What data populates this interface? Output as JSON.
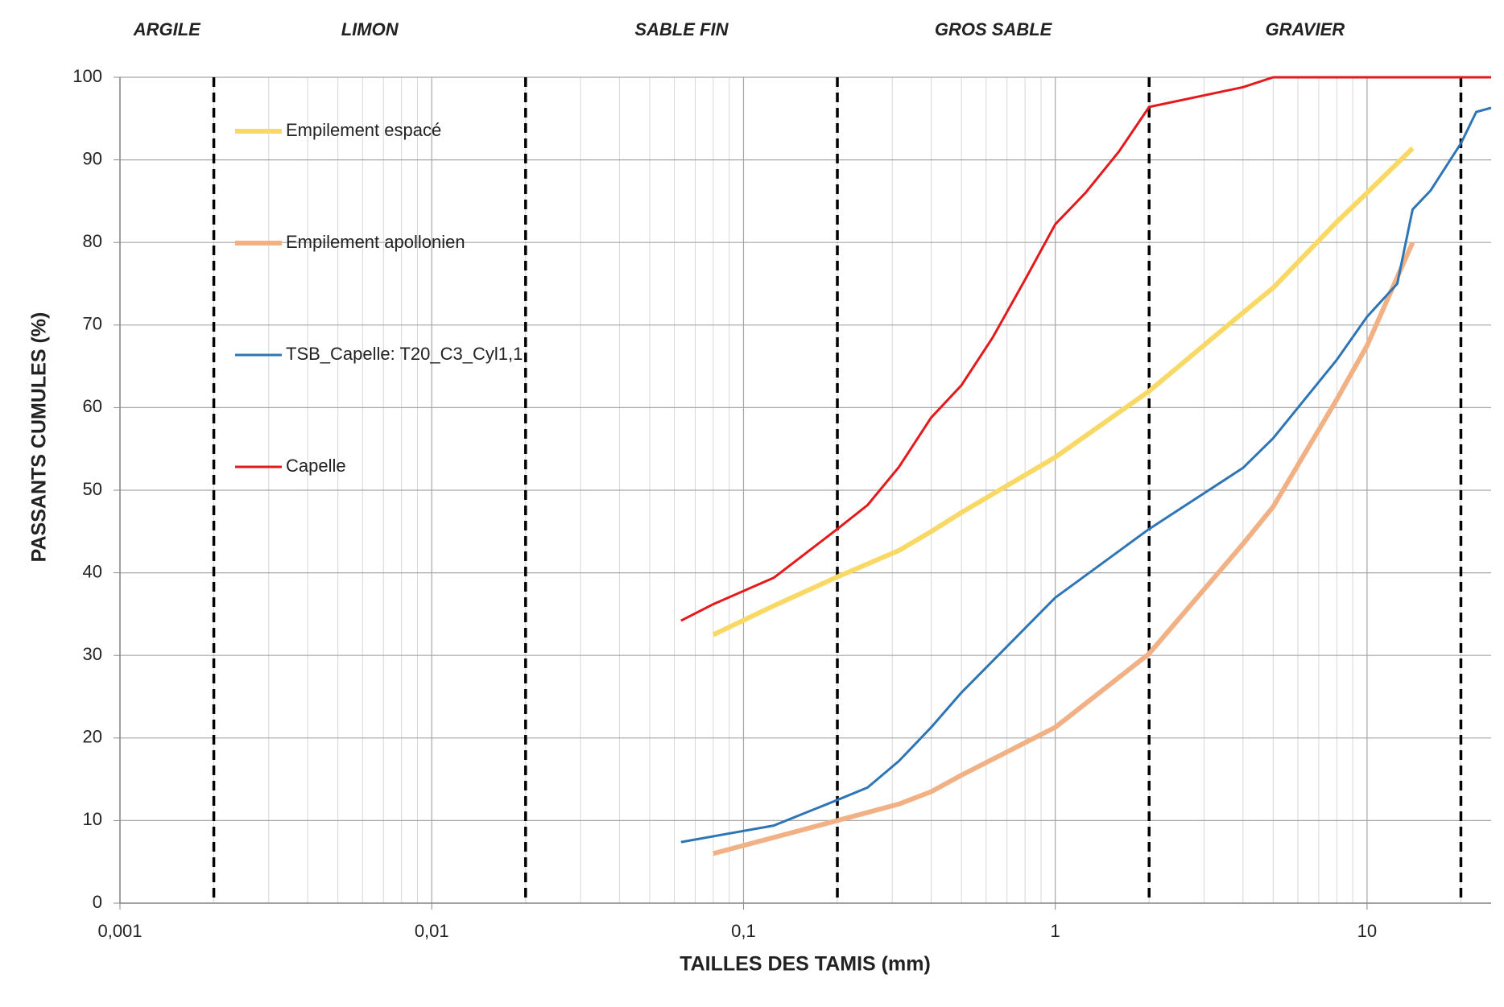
{
  "chart_data": {
    "type": "line",
    "x_axis_label": "TAILLES DES TAMIS (mm)",
    "y_axis_label": "PASSANTS CUMULES (%)",
    "log_x": true,
    "grid": true,
    "minor_grid": true,
    "legend": "upper left",
    "xlim": [
      0.001,
      25
    ],
    "ylim": [
      0,
      100
    ],
    "xticks": [
      {
        "value": 0.001,
        "label": "0,001"
      },
      {
        "value": 0.01,
        "label": "0,01"
      },
      {
        "value": 0.1,
        "label": "0,1"
      },
      1,
      10
    ],
    "yticks": [
      0,
      10,
      20,
      30,
      40,
      50,
      60,
      70,
      80,
      90,
      100
    ],
    "zones": [
      "ARGILE",
      "LIMON",
      "SABLE FIN",
      "GROS SABLE",
      "GRAVIER"
    ],
    "zone_boundaries": [
      0.002,
      0.02,
      0.2,
      2,
      20
    ],
    "series": [
      {
        "name": "Empilement espacé",
        "color": "#f9d966",
        "line_width": 6,
        "x": [
          0.08,
          0.125,
          0.2,
          0.315,
          0.4,
          0.5,
          1,
          2,
          4,
          5,
          8,
          10,
          14
        ],
        "values": [
          32.5,
          36,
          39.5,
          42.7,
          45,
          47.3,
          54,
          62,
          71.5,
          74.5,
          82.5,
          86,
          91.4
        ]
      },
      {
        "name": "Empilement apollonien",
        "color": "#f1b184",
        "line_width": 6,
        "x": [
          0.08,
          0.2,
          0.315,
          0.4,
          0.5,
          1,
          2,
          4,
          5,
          8,
          10,
          14
        ],
        "values": [
          6,
          10,
          12,
          13.5,
          15.5,
          21.3,
          30.2,
          43.5,
          48,
          61,
          67.5,
          80
        ]
      },
      {
        "name": "TSB_Capelle: T20_C3_Cyl1,1",
        "color": "#2e75b6",
        "line_width": 3,
        "x": [
          0.063,
          0.125,
          0.2,
          0.25,
          0.315,
          0.4,
          0.5,
          1,
          2,
          4,
          5,
          8,
          10,
          12.5,
          14,
          16,
          20,
          22.4,
          25
        ],
        "values": [
          7.4,
          9.4,
          12.5,
          14,
          17.2,
          21.3,
          25.5,
          37,
          45.3,
          52.7,
          56.3,
          65.8,
          71,
          75,
          84,
          86.3,
          92,
          95.8,
          96.3
        ]
      },
      {
        "name": "Capelle",
        "color": "#e31a1c",
        "line_width": 3,
        "x": [
          0.063,
          0.08,
          0.125,
          0.2,
          0.25,
          0.315,
          0.4,
          0.5,
          0.63,
          0.8,
          1,
          1.25,
          1.6,
          2,
          4,
          5,
          25
        ],
        "values": [
          34.2,
          36.2,
          39.4,
          45.3,
          48.2,
          52.8,
          58.8,
          62.7,
          68.5,
          75.5,
          82.2,
          86,
          91,
          96.4,
          98.8,
          100,
          100
        ]
      }
    ]
  }
}
